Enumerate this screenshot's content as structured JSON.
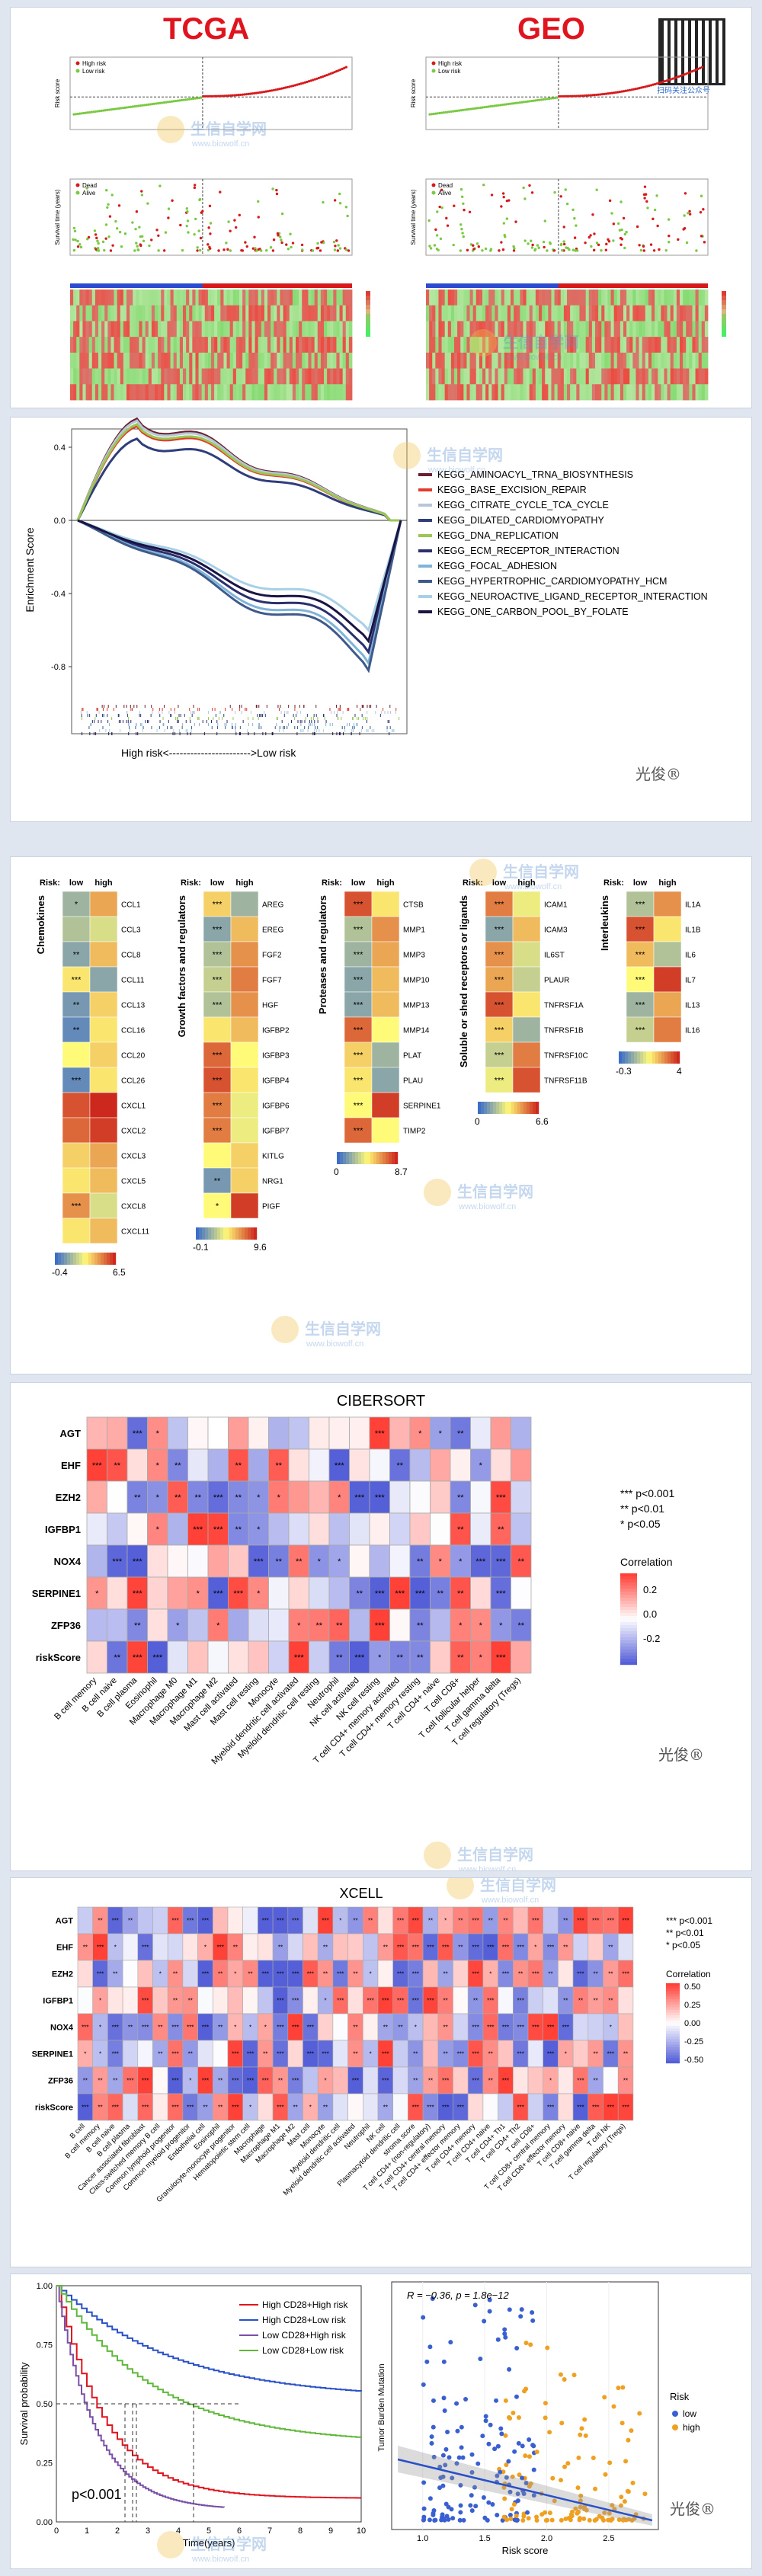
{
  "survival_panel": {
    "tcga_title": "TCGA",
    "geo_title": "GEO",
    "risk_legend": [
      "High risk",
      "Low risk"
    ],
    "status_legend": [
      "Dead",
      "Alive"
    ],
    "risk_ylabel": "Risk score",
    "time_ylabel": "Survival time (years)",
    "qr_caption": "扫码关注公众号",
    "colors": {
      "high": "#d7191c",
      "low": "#7ac943",
      "dead": "#d7191c",
      "alive": "#7ac943"
    }
  },
  "gsea": {
    "ylabel": "Enrichment Score",
    "yticks": [
      "0.4",
      "0.0",
      "-0.4",
      "-0.8"
    ],
    "xcaption": "High risk<----------------------->Low risk",
    "signature": "光俊®",
    "terms": [
      {
        "name": "KEGG_AMINOACYL_TRNA_BIOSYNTHESIS",
        "color": "#6b1f2e"
      },
      {
        "name": "KEGG_BASE_EXCISION_REPAIR",
        "color": "#e23b2e"
      },
      {
        "name": "KEGG_CITRATE_CYCLE_TCA_CYCLE",
        "color": "#b5c7d8"
      },
      {
        "name": "KEGG_DILATED_CARDIOMYOPATHY",
        "color": "#2f3d7a"
      },
      {
        "name": "KEGG_DNA_REPLICATION",
        "color": "#9cc653"
      },
      {
        "name": "KEGG_ECM_RECEPTOR_INTERACTION",
        "color": "#2b2f6e"
      },
      {
        "name": "KEGG_FOCAL_ADHESION",
        "color": "#7fb3d8"
      },
      {
        "name": "KEGG_HYPERTROPHIC_CARDIOMYOPATHY_HCM",
        "color": "#3d5a8a"
      },
      {
        "name": "KEGG_NEUROACTIVE_LIGAND_RECEPTOR_INTERACTION",
        "color": "#a7d0e6"
      },
      {
        "name": "KEGG_ONE_CARBON_POOL_BY_FOLATE",
        "color": "#1a1445"
      }
    ]
  },
  "cytokine": {
    "risk_label": "Risk:",
    "low": "low",
    "high": "high",
    "groups": [
      {
        "title": "Chemokines",
        "genes": [
          "CCL1",
          "CCL3",
          "CCL8",
          "CCL11",
          "CCL13",
          "CCL16",
          "CCL20",
          "CCL26",
          "CXCL1",
          "CXCL2",
          "CXCL3",
          "CXCL5",
          "CXCL8",
          "CXCL11"
        ],
        "sig": [
          "*",
          "",
          "**",
          "***",
          "**",
          "**",
          "",
          "***",
          "",
          "",
          "",
          "",
          "***",
          ""
        ],
        "low": [
          0.25,
          0.3,
          0.2,
          0.55,
          0.15,
          0.1,
          0.5,
          0.1,
          0.9,
          0.85,
          0.6,
          0.55,
          0.75,
          0.55
        ],
        "scale": [
          "-0.4",
          "6.5"
        ]
      },
      {
        "title": "Growth factors and regulators",
        "genes": [
          "AREG",
          "EREG",
          "FGF2",
          "FGF7",
          "HGF",
          "IGFBP2",
          "IGFBP3",
          "IGFBP4",
          "IGFBP6",
          "IGFBP7",
          "KITLG",
          "NRG1",
          "PIGF"
        ],
        "sig": [
          "***",
          "***",
          "***",
          "***",
          "***",
          "",
          "***",
          "***",
          "***",
          "***",
          "",
          "**",
          "*"
        ],
        "low": [
          0.6,
          0.2,
          0.3,
          0.35,
          0.3,
          0.55,
          0.85,
          0.9,
          0.8,
          0.8,
          0.5,
          0.15,
          0.5
        ],
        "scale": [
          "-0.1",
          "9.6"
        ]
      },
      {
        "title": "Proteases and regulators",
        "genes": [
          "CTSB",
          "MMP1",
          "MMP3",
          "MMP10",
          "MMP13",
          "MMP14",
          "PLAT",
          "PLAU",
          "SERPINE1",
          "TIMP2"
        ],
        "sig": [
          "***",
          "***",
          "***",
          "***",
          "***",
          "***",
          "***",
          "***",
          "***",
          "***"
        ],
        "low": [
          0.9,
          0.3,
          0.25,
          0.2,
          0.2,
          0.85,
          0.6,
          0.55,
          0.5,
          0.85
        ],
        "scale": [
          "0",
          "8.7"
        ]
      },
      {
        "title": "Soluble or shed receptors or ligands",
        "genes": [
          "ICAM1",
          "ICAM3",
          "IL6ST",
          "PLAUR",
          "TNFRSF1A",
          "TNFRSF1B",
          "TNFRSF10C",
          "TNFRSF11B"
        ],
        "sig": [
          "***",
          "***",
          "***",
          "***",
          "***",
          "***",
          "***",
          "***"
        ],
        "low": [
          0.8,
          0.2,
          0.75,
          0.7,
          0.9,
          0.6,
          0.35,
          0.45
        ],
        "scale": [
          "0",
          "6.6"
        ]
      },
      {
        "title": "Interleukins",
        "genes": [
          "IL1A",
          "IL1B",
          "IL6",
          "IL7",
          "IL13",
          "IL16"
        ],
        "sig": [
          "***",
          "***",
          "***",
          "***",
          "***",
          "***"
        ],
        "low": [
          0.3,
          0.9,
          0.65,
          0.5,
          0.25,
          0.35
        ],
        "scale": [
          "-0.3",
          "4"
        ]
      }
    ]
  },
  "cibersort": {
    "title": "CIBERSORT",
    "rows": [
      "AGT",
      "EHF",
      "EZH2",
      "IGFBP1",
      "NOX4",
      "SERPINE1",
      "ZFP36",
      "riskScore"
    ],
    "cols": [
      "B cell memory",
      "B cell naive",
      "B cell plasma",
      "Eosinophil",
      "Macrophage M0",
      "Macrophage M1",
      "Macrophage M2",
      "Mast cell activated",
      "Mast cell resting",
      "Monocyte",
      "Myeloid dendritic cell activated",
      "Myeloid dendritic cell resting",
      "Neutrophil",
      "NK cell activated",
      "NK cell resting",
      "T cell CD4+ memory activated",
      "T cell CD4+ memory resting",
      "T cell CD4+ naive",
      "T cell CD8+",
      "T cell follicular helper",
      "T cell gamma delta",
      "T cell regulatory (Tregs)"
    ],
    "legend_sig": [
      "*** p<0.001",
      "** p<0.01",
      "* p<0.05"
    ],
    "legend_title": "Correlation",
    "legend_ticks": [
      "0.2",
      "0.0",
      "-0.2"
    ],
    "signature": "光俊®"
  },
  "xcell": {
    "title": "XCELL",
    "rows": [
      "AGT",
      "EHF",
      "EZH2",
      "IGFBP1",
      "NOX4",
      "SERPINE1",
      "ZFP36",
      "riskScore"
    ],
    "cols": [
      "B cell",
      "B cell memory",
      "B cell naive",
      "B cell plasma",
      "Cancer associated fibroblast",
      "Class-switched memory B cell",
      "Common lymphoid progenitor",
      "Common myeloid progenitor",
      "Endothelial cell",
      "Eosinophil",
      "Granulocyte-monocyte progenitor",
      "Hematopoietic stem cell",
      "Macrophage",
      "Macrophage M1",
      "Macrophage M2",
      "Mast cell",
      "Monocyte",
      "Myeloid dendritic cell",
      "Myeloid dendritic cell activated",
      "Neutrophil",
      "NK cell",
      "Plasmacytoid dendritic cell",
      "stroma score",
      "T cell CD4+ (non-regulatory)",
      "T cell CD4+ central memory",
      "T cell CD4+ effector memory",
      "T cell CD4+ memory",
      "T cell CD4+ naive",
      "T cell CD4+ Th1",
      "T cell CD4+ Th2",
      "T cell CD8+",
      "T cell CD8+ central memory",
      "T cell CD8+ effector memory",
      "T cell CD8+ naive",
      "T cell gamma delta",
      "T cell NK",
      "T cell regulatory (Tregs)"
    ],
    "legend_sig": [
      "*** p<0.001",
      "** p<0.01",
      "* p<0.05"
    ],
    "legend_title": "Correlation",
    "legend_ticks": [
      "0.50",
      "0.25",
      "0.00",
      "-0.25",
      "-0.50"
    ]
  },
  "km": {
    "ylabel": "Survival probability",
    "xlabel": "Time(years)",
    "pvalue": "p<0.001",
    "yticks": [
      "0.00",
      "0.25",
      "0.50",
      "0.75",
      "1.00"
    ],
    "xticks": [
      "0",
      "1",
      "2",
      "3",
      "4",
      "5",
      "6",
      "7",
      "8",
      "9",
      "10"
    ],
    "legend": [
      {
        "name": "High CD28+High risk",
        "color": "#e0141e"
      },
      {
        "name": "High CD28+Low risk",
        "color": "#2850c8"
      },
      {
        "name": "Low CD28+High risk",
        "color": "#7a4fa8"
      },
      {
        "name": "Low CD28+Low risk",
        "color": "#5fb83a"
      }
    ]
  },
  "scatter": {
    "annotation": "R = −0.36, p = 1.8e−12",
    "xlabel": "Risk score",
    "ylabel": "Tumor Burden Mutation",
    "xticks": [
      "1.0",
      "1.5",
      "2.0",
      "2.5"
    ],
    "legend_title": "Risk",
    "legend": [
      {
        "name": "low",
        "color": "#3a5fd0"
      },
      {
        "name": "high",
        "color": "#f0a020"
      }
    ],
    "signature": "光俊®"
  },
  "watermark": {
    "text": "生信自学网",
    "url": "www.biowolf.cn"
  }
}
